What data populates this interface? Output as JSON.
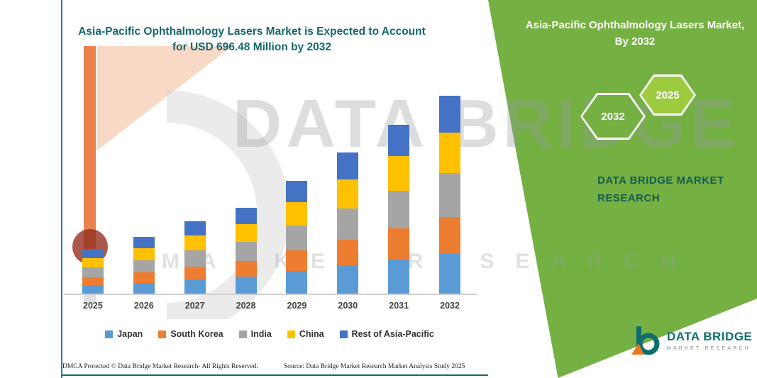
{
  "colors": {
    "title_teal": "#17686C",
    "brand_teal": "#0E6E6E",
    "panel_green": "#75B043",
    "hexagon_front_green": "#9CCB3F"
  },
  "header": {
    "title": "Asia-Pacific Ophthalmology Lasers Market is Expected to Account for USD 696.48 Million by 2032"
  },
  "green_panel": {
    "title": "Asia-Pacific Ophthalmology Lasers Market, By 2032",
    "hexagon_back": "2032",
    "hexagon_front": "2025",
    "brand_caption": "DATA BRIDGE MARKET RESEARCH"
  },
  "watermark": {
    "line1": "DATA BRIDGE",
    "line2": "MARKET RESEARCH"
  },
  "chart_data": {
    "type": "bar",
    "stacked": true,
    "title": "Asia-Pacific Ophthalmology Lasers Market is Expected to Account for USD 696.48 Million by 2032",
    "xlabel": "",
    "ylabel": "",
    "grid": false,
    "legend_position": "bottom",
    "categories": [
      "2025",
      "2026",
      "2027",
      "2028",
      "2029",
      "2030",
      "2031",
      "2032"
    ],
    "series": [
      {
        "name": "Japan",
        "color": "#5B9BD5",
        "values": [
          30,
          38,
          50,
          60,
          80,
          100,
          120,
          140
        ]
      },
      {
        "name": "South Korea",
        "color": "#ED7D31",
        "values": [
          28,
          36,
          46,
          56,
          72,
          90,
          110,
          130
        ]
      },
      {
        "name": "India",
        "color": "#A5A5A5",
        "values": [
          34,
          44,
          56,
          66,
          88,
          110,
          132,
          155
        ]
      },
      {
        "name": "China",
        "color": "#FFC000",
        "values": [
          32,
          42,
          52,
          62,
          82,
          102,
          122,
          142
        ]
      },
      {
        "name": "Rest of Asia-Pacific",
        "color": "#4472C4",
        "values": [
          33,
          39,
          50,
          59,
          76,
          95,
          110,
          129.48
        ]
      }
    ],
    "totals_estimated_usd_million": [
      157,
      199,
      254,
      303,
      398,
      497,
      594,
      696.48
    ],
    "stated_total_2032": 696.48
  },
  "footer": {
    "dmca": "DMCA Protected © Data Bridge Market Research-  All Rights Reserved.",
    "source": "Source: Data Bridge Market Research  Market Analysis Study 2025"
  },
  "brand_logo": {
    "name": "DATA BRIDGE",
    "subtitle": "MARKET RESEARCH"
  }
}
